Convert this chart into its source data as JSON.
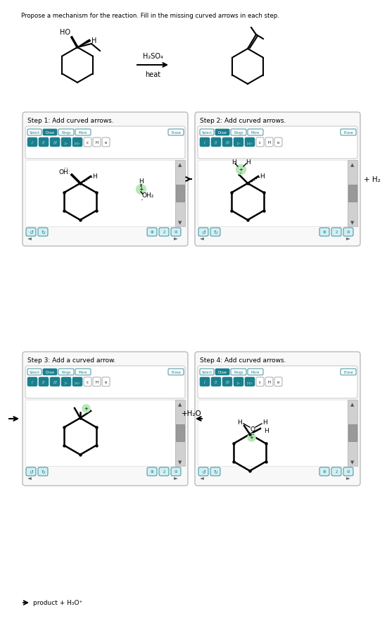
{
  "title_text": "Propose a mechanism for the reaction. Fill in the missing curved arrows in each step.",
  "bg_color": "#ffffff",
  "teal_color": "#1a7f8e",
  "light_btn": "#d4eef2",
  "step1_label": "Step 1: Add curved arrows.",
  "step2_label": "Step 2: Add curved arrows.",
  "step3_label": "Step 3: Add a curved arrow.",
  "step4_label": "Step 4: Add curved arrows.",
  "plus_h2": "+ H₂",
  "plus_h2o": "+H₂O",
  "rxn_reagent": "H₂SO₄",
  "rxn_condition": "heat",
  "bottom_text": "→ product + H₃O⁺"
}
